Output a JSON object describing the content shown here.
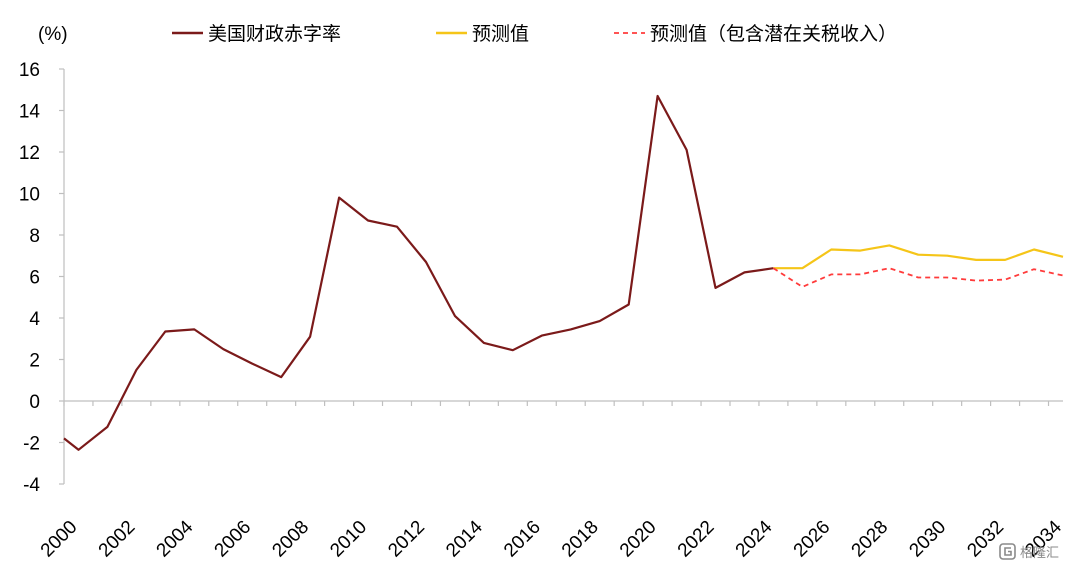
{
  "chart_data": {
    "type": "line",
    "ylabel": "(%)",
    "ylim": [
      -4,
      16
    ],
    "yticks": [
      -4,
      -2,
      0,
      2,
      4,
      6,
      8,
      10,
      12,
      14,
      16
    ],
    "x_range": [
      2000,
      2034.5
    ],
    "xticks": [
      2000,
      2002,
      2004,
      2006,
      2008,
      2010,
      2012,
      2014,
      2016,
      2018,
      2020,
      2022,
      2024,
      2026,
      2028,
      2030,
      2032,
      2034
    ],
    "legend_placement": "top",
    "grid": false,
    "series": [
      {
        "name": "美国财政赤字率",
        "color": "#7b1a1a",
        "style": "solid",
        "points": [
          [
            2000,
            -1.8
          ],
          [
            2000.5,
            -2.35
          ],
          [
            2001.5,
            -1.25
          ],
          [
            2002.5,
            1.5
          ],
          [
            2003.5,
            3.35
          ],
          [
            2004.5,
            3.45
          ],
          [
            2005.5,
            2.5
          ],
          [
            2006.5,
            1.8
          ],
          [
            2007.5,
            1.15
          ],
          [
            2008.5,
            3.1
          ],
          [
            2009.5,
            9.8
          ],
          [
            2010.5,
            8.7
          ],
          [
            2011.5,
            8.4
          ],
          [
            2012.5,
            6.7
          ],
          [
            2013.5,
            4.1
          ],
          [
            2014.5,
            2.8
          ],
          [
            2015.5,
            2.45
          ],
          [
            2016.5,
            3.15
          ],
          [
            2017.5,
            3.45
          ],
          [
            2018.5,
            3.85
          ],
          [
            2019.5,
            4.65
          ],
          [
            2020.5,
            14.7
          ],
          [
            2021.5,
            12.1
          ],
          [
            2022.5,
            5.45
          ],
          [
            2023.5,
            6.2
          ],
          [
            2024.5,
            6.4
          ]
        ]
      },
      {
        "name": "预测值",
        "color": "#f5c518",
        "style": "solid",
        "points": [
          [
            2024.5,
            6.4
          ],
          [
            2025.5,
            6.4
          ],
          [
            2026.5,
            7.3
          ],
          [
            2027.5,
            7.25
          ],
          [
            2028.5,
            7.5
          ],
          [
            2029.5,
            7.05
          ],
          [
            2030.5,
            7.0
          ],
          [
            2031.5,
            6.8
          ],
          [
            2032.5,
            6.8
          ],
          [
            2033.5,
            7.3
          ],
          [
            2034.5,
            6.95
          ]
        ]
      },
      {
        "name": "预测值（包含潜在关税收入）",
        "color": "#ff3b3b",
        "style": "dashed",
        "points": [
          [
            2024.5,
            6.4
          ],
          [
            2025.5,
            5.5
          ],
          [
            2026.5,
            6.1
          ],
          [
            2027.5,
            6.1
          ],
          [
            2028.5,
            6.4
          ],
          [
            2029.5,
            5.95
          ],
          [
            2030.5,
            5.95
          ],
          [
            2031.5,
            5.8
          ],
          [
            2032.5,
            5.85
          ],
          [
            2033.5,
            6.35
          ],
          [
            2034.5,
            6.05
          ]
        ]
      }
    ]
  },
  "watermark": {
    "icon": "gelonghui-logo-icon",
    "text": "格隆汇"
  }
}
